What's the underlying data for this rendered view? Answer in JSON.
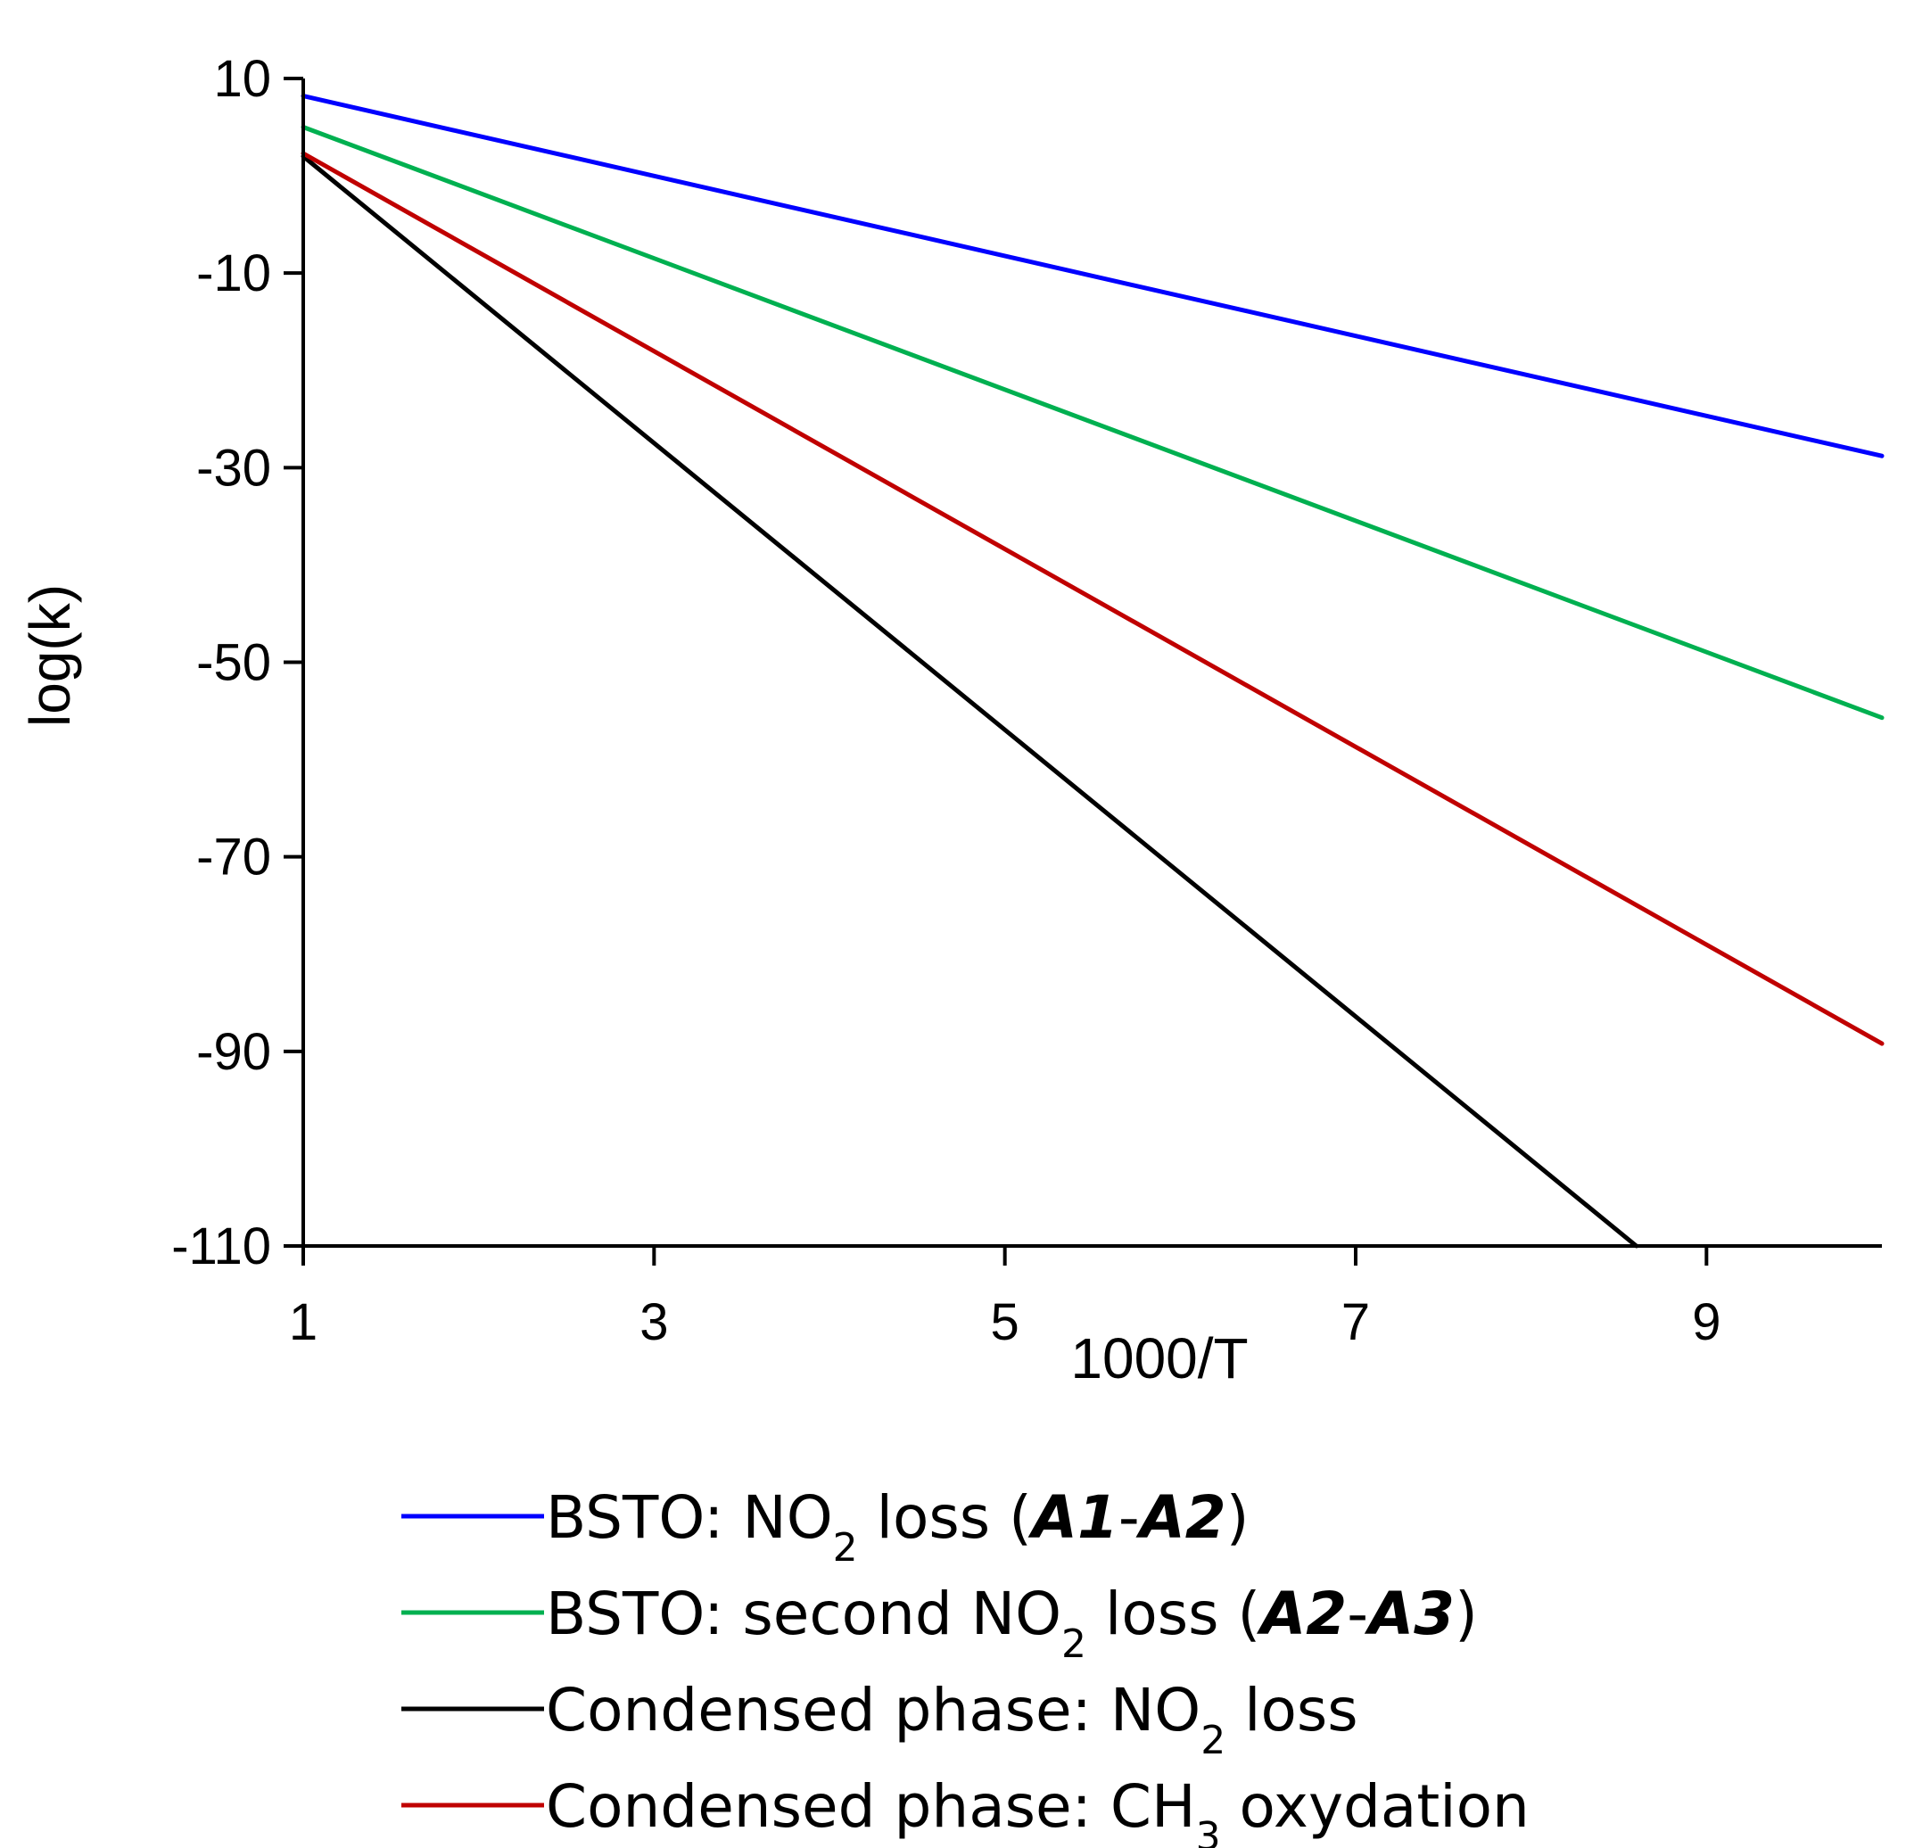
{
  "chart_data": {
    "type": "line",
    "title": "",
    "xlabel": "1000/T",
    "ylabel": "log(k)",
    "xlim": [
      1,
      10
    ],
    "ylim": [
      -110,
      10
    ],
    "xticks": [
      1,
      3,
      5,
      7,
      9
    ],
    "yticks": [
      10,
      -10,
      -30,
      -50,
      -70,
      -90,
      -110
    ],
    "xtick_labels": [
      "1",
      "3",
      "5",
      "7",
      "9"
    ],
    "ytick_labels": [
      "10",
      "-10",
      "-30",
      "-50",
      "-70",
      "-90",
      "-110"
    ],
    "grid": false,
    "legend_position": "bottom",
    "series": [
      {
        "name": "BSTO: NO2 loss (A1-A2)",
        "legend": {
          "pre": "BSTO: NO",
          "sub": "2",
          "post": " loss (",
          "em1": "A1",
          "dash": "-",
          "em2": "A2",
          "close": ")"
        },
        "color": "#0000ff",
        "x": [
          1,
          10
        ],
        "y": [
          8.2,
          -28.8
        ]
      },
      {
        "name": "BSTO: second NO2 loss (A2-A3)",
        "legend": {
          "pre": "BSTO: second NO",
          "sub": "2",
          "post": " loss (",
          "em1": "A2",
          "dash": "-",
          "em2": "A3",
          "close": ")"
        },
        "color": "#00b050",
        "x": [
          1,
          10
        ],
        "y": [
          5.0,
          -55.7
        ]
      },
      {
        "name": "Condensed phase: NO2 loss",
        "legend": {
          "pre": "Condensed phase: NO",
          "sub": "2",
          "post": " loss"
        },
        "color": "#000000",
        "x": [
          1,
          8.6
        ],
        "y": [
          2.0,
          -110
        ]
      },
      {
        "name": "Condensed phase: CH3 oxydation",
        "legend": {
          "pre": "Condensed phase: CH",
          "sub": "3",
          "post": " oxydation"
        },
        "color": "#c00000",
        "x": [
          1,
          10
        ],
        "y": [
          2.3,
          -89.2
        ]
      }
    ]
  }
}
